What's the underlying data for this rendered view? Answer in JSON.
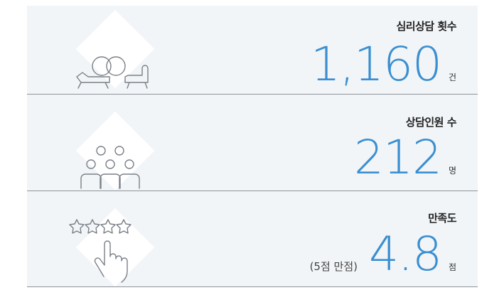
{
  "stats": [
    {
      "label": "심리상담 횟수",
      "value": "1,160",
      "unit": "건"
    },
    {
      "label": "상담인원 수",
      "value": "212",
      "unit": "명"
    },
    {
      "label": "만족도",
      "value": "4.8",
      "unit": "점",
      "note": "(5점 만점)"
    }
  ]
}
